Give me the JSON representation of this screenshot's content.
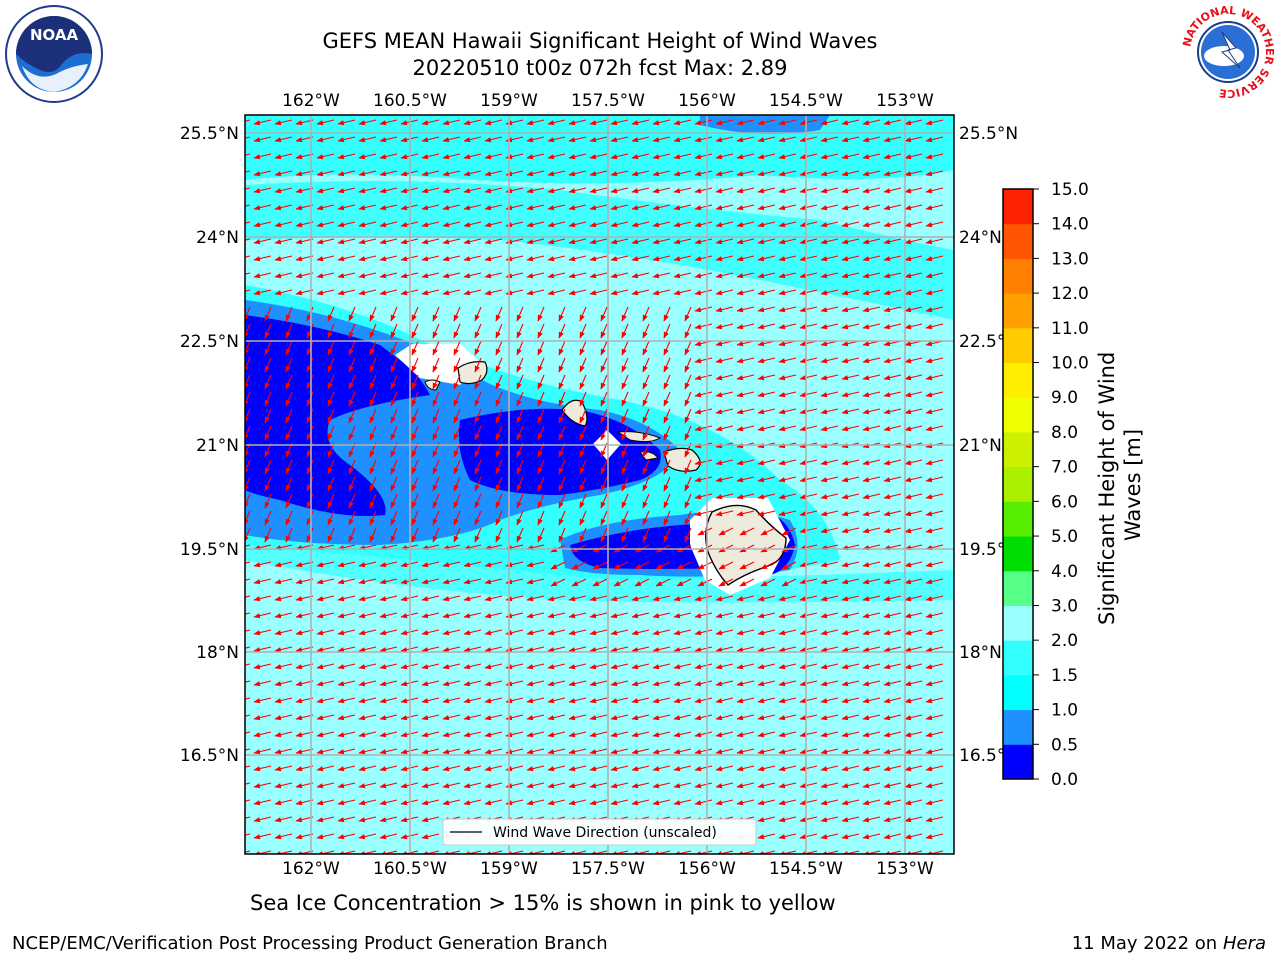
{
  "title": {
    "line1": "GEFS MEAN Hawaii Significant Height of Wind Waves",
    "line2": "20220510 t00z 072h fcst   Max: 2.89"
  },
  "map": {
    "lon_ticks": [
      "162°W",
      "160.5°W",
      "159°W",
      "157.5°W",
      "156°W",
      "154.5°W",
      "153°W"
    ],
    "lat_ticks": [
      "25.5°N",
      "24°N",
      "22.5°N",
      "21°N",
      "19.5°N",
      "18°N",
      "16.5°N"
    ],
    "legend_label": "Wind Wave Direction (unscaled)",
    "colors": {
      "deep_blue": "#0000ff",
      "mid_blue": "#1e90ff",
      "light_cyan": "#99ffff",
      "cyan": "#33ffff",
      "land": "#eeeadc",
      "arrow": "#ff0000",
      "grid": "#b0b0b0"
    }
  },
  "colorbar": {
    "label": "Significant Height of Wind Waves [m]",
    "ticks": [
      "0.0",
      "0.5",
      "1.0",
      "1.5",
      "2.0",
      "3.0",
      "4.0",
      "5.0",
      "6.0",
      "7.0",
      "8.0",
      "9.0",
      "10.0",
      "11.0",
      "12.0",
      "13.0",
      "14.0",
      "15.0"
    ],
    "colors": [
      "#0000ff",
      "#1e90ff",
      "#00ffff",
      "#33ffff",
      "#99ffff",
      "#55ff88",
      "#00dd00",
      "#55ee00",
      "#aaee00",
      "#ccf000",
      "#eeff00",
      "#ffee00",
      "#ffcc00",
      "#ffa000",
      "#ff8000",
      "#ff5500",
      "#ff2200",
      "#ff0000"
    ]
  },
  "caption": "Sea Ice Concentration > 15% is shown in pink to yellow",
  "footer": {
    "left": "NCEP/EMC/Verification Post Processing Product Generation Branch",
    "right_date": "11 May 2022 on",
    "right_host": "Hera"
  },
  "logos": {
    "noaa_text": "NOAA",
    "nws_text": "NATIONAL WEATHER SERVICE"
  }
}
